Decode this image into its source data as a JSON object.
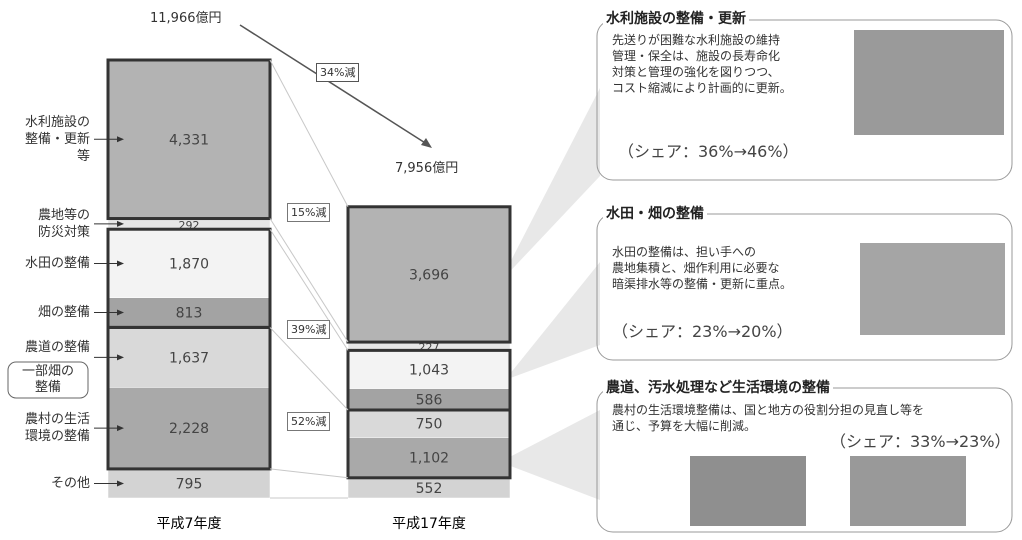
{
  "chart_data": {
    "type": "stacked_bar",
    "categories": [
      "平成7年度",
      "平成17年度"
    ],
    "series": [
      {
        "name": "その他",
        "color": "#d3d3d3",
        "values": [
          795,
          552
        ],
        "value_labels": [
          "795",
          "552"
        ]
      },
      {
        "name": "農村の生活\n環境の整備",
        "color": "#a9a9a9",
        "values": [
          2228,
          1102
        ],
        "value_labels": [
          "2,228",
          "1,102"
        ]
      },
      {
        "name": "農道の整備",
        "color": "#d9d9d9",
        "values": [
          1637,
          750
        ],
        "value_labels": [
          "1,637",
          "750"
        ]
      },
      {
        "name": "畑の整備",
        "color": "#a3a3a3",
        "values": [
          813,
          586
        ],
        "value_labels": [
          "813",
          "586"
        ]
      },
      {
        "name": "水田の整備",
        "color": "#f3f3f3",
        "values": [
          1870,
          1043
        ],
        "value_labels": [
          "1,870",
          "1,043"
        ]
      },
      {
        "name": "農地等の\n防災対策",
        "color": "#e6e6e6",
        "values": [
          292,
          227
        ],
        "value_labels": [
          "292",
          "227"
        ]
      },
      {
        "name": "水利施設の\n整備・更新\n等",
        "color": "#b3b3b3",
        "values": [
          4331,
          3696
        ],
        "value_labels": [
          "4,331",
          "3,696"
        ]
      }
    ],
    "totals": [
      {
        "value": 11966,
        "label": "11,966億円"
      },
      {
        "value": 7956,
        "label": "7,956億円"
      }
    ],
    "annotations": [
      "一部畑の\n整備",
      "34%減",
      "15%減",
      "39%減",
      "52%減"
    ]
  },
  "panels": [
    {
      "title": "水利施設の整備・更新",
      "text": "先送りが困難な水利施設の維持\n管理・保全は、施設の長寿命化\n対策と管理の強化を図りつつ、\nコスト縮減により計画的に更新。",
      "share": "（シェア：36%→46%）"
    },
    {
      "title": "水田・畑の整備",
      "text": "水田の整備は、担い手への\n農地集積と、畑作利用に必要な\n暗渠排水等の整備・更新に重点。",
      "share": "（シェア：23%→20%）"
    },
    {
      "title": "農道、汚水処理など生活環境の整備",
      "text": "農村の生活環境整備は、国と地方の役割分担の見直し等を\n通じ、予算を大幅に削減。",
      "share": "（シェア：33%→23%）"
    }
  ]
}
